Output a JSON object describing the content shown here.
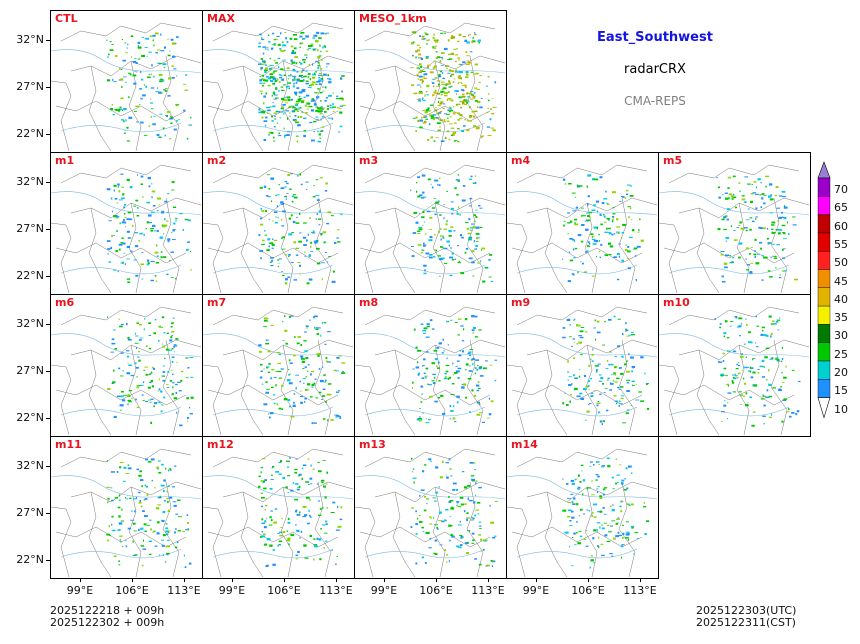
{
  "header": {
    "region": "East_Southwest",
    "variable": "radarCRX",
    "model": "CMA-REPS"
  },
  "panels": [
    {
      "label": "CTL"
    },
    {
      "label": "MAX"
    },
    {
      "label": "MESO_1km"
    },
    {
      "label": "m1"
    },
    {
      "label": "m2"
    },
    {
      "label": "m3"
    },
    {
      "label": "m4"
    },
    {
      "label": "m5"
    },
    {
      "label": "m6"
    },
    {
      "label": "m7"
    },
    {
      "label": "m8"
    },
    {
      "label": "m9"
    },
    {
      "label": "m10"
    },
    {
      "label": "m11"
    },
    {
      "label": "m12"
    },
    {
      "label": "m13"
    },
    {
      "label": "m14"
    }
  ],
  "axes": {
    "lat_ticks": [
      "32°N",
      "27°N",
      "22°N"
    ],
    "lon_ticks": [
      "99°E",
      "106°E",
      "113°E"
    ]
  },
  "colorbar": {
    "labels": [
      "70",
      "65",
      "60",
      "55",
      "50",
      "45",
      "40",
      "35",
      "30",
      "25",
      "20",
      "15",
      "10"
    ],
    "colors": [
      "#9a7fd6",
      "#9a00c8",
      "#ff00ff",
      "#c00000",
      "#e00000",
      "#ff2020",
      "#f09000",
      "#e0b400",
      "#f5f000",
      "#007a00",
      "#00c800",
      "#00d0d0",
      "#1e90ff"
    ],
    "top_color": "#9a7fd6",
    "bottom_color": "#ffffff"
  },
  "footer": {
    "init_utc": "2025122218  +  009h",
    "init_cst": "2025122302  +  009h",
    "valid_utc": "2025122303(UTC)",
    "valid_cst": "2025122311(CST)"
  }
}
